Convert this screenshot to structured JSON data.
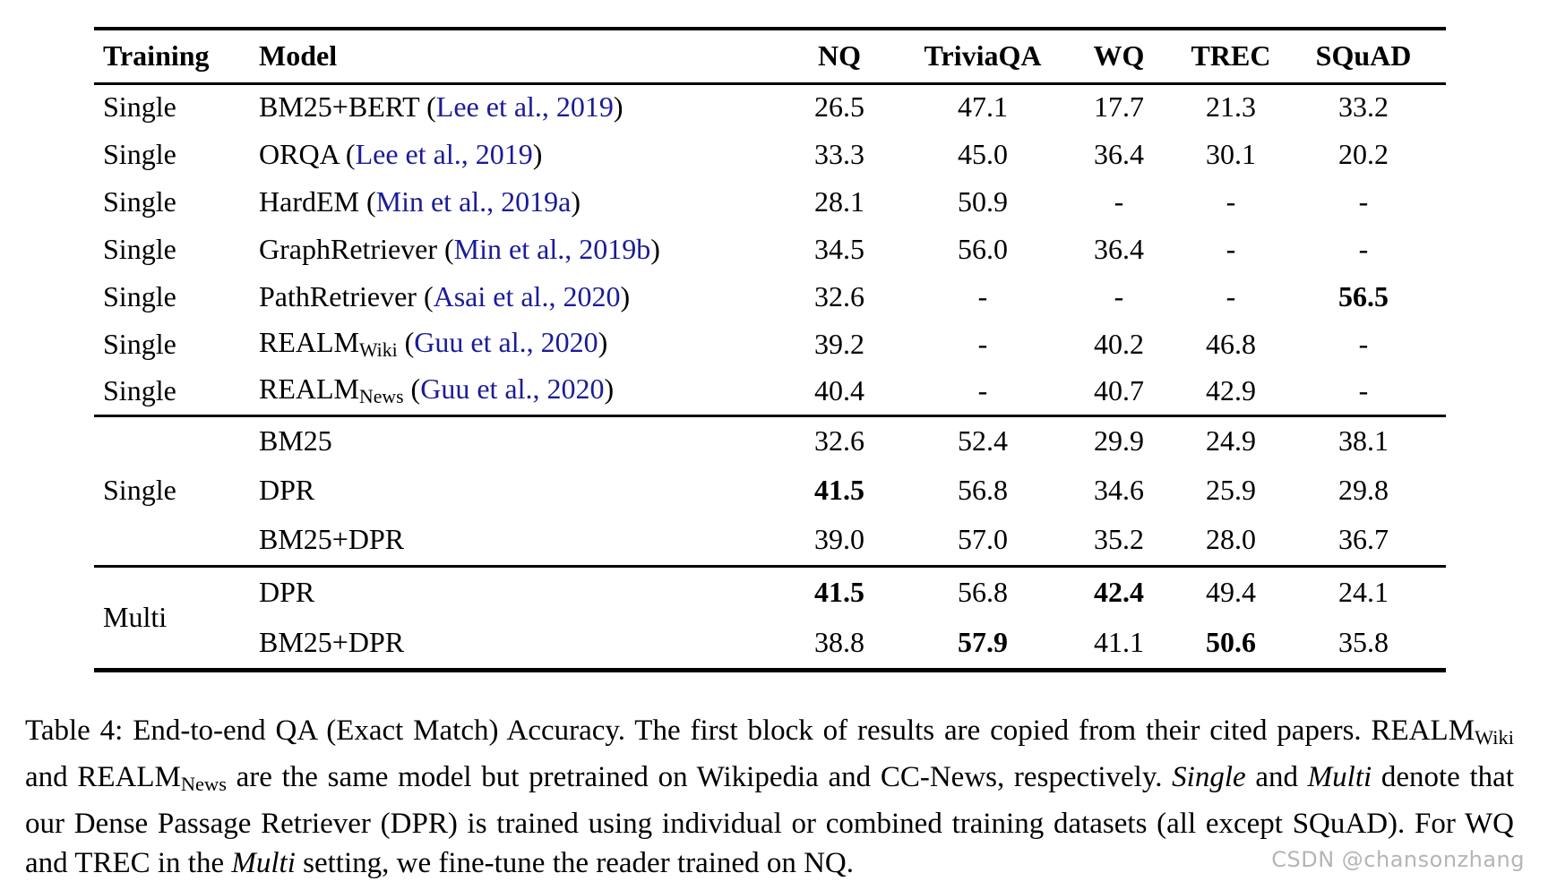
{
  "colors": {
    "citation": "#1b1b99",
    "text": "#000000",
    "rule": "#000000",
    "watermark": "#b5b5b5",
    "background": "#ffffff"
  },
  "table": {
    "headers": [
      "Training",
      "Model",
      "NQ",
      "TriviaQA",
      "WQ",
      "TREC",
      "SQuAD"
    ],
    "blocks": [
      {
        "rows": [
          {
            "training": "Single",
            "model": [
              {
                "t": "BM25+BERT (",
                "s": "n"
              },
              {
                "t": "Lee et al., 2019",
                "s": "c"
              },
              {
                "t": ")",
                "s": "n"
              }
            ],
            "values": [
              "26.5",
              "47.1",
              "17.7",
              "21.3",
              "33.2"
            ],
            "bold": []
          },
          {
            "training": "Single",
            "model": [
              {
                "t": "ORQA (",
                "s": "n"
              },
              {
                "t": "Lee et al., 2019",
                "s": "c"
              },
              {
                "t": ")",
                "s": "n"
              }
            ],
            "values": [
              "33.3",
              "45.0",
              "36.4",
              "30.1",
              "20.2"
            ],
            "bold": []
          },
          {
            "training": "Single",
            "model": [
              {
                "t": "HardEM (",
                "s": "n"
              },
              {
                "t": "Min et al., 2019a",
                "s": "c"
              },
              {
                "t": ")",
                "s": "n"
              }
            ],
            "values": [
              "28.1",
              "50.9",
              "-",
              "-",
              "-"
            ],
            "bold": []
          },
          {
            "training": "Single",
            "model": [
              {
                "t": "GraphRetriever (",
                "s": "n"
              },
              {
                "t": "Min et al., 2019b",
                "s": "c"
              },
              {
                "t": ")",
                "s": "n"
              }
            ],
            "values": [
              "34.5",
              "56.0",
              "36.4",
              "-",
              "-"
            ],
            "bold": []
          },
          {
            "training": "Single",
            "model": [
              {
                "t": "PathRetriever (",
                "s": "n"
              },
              {
                "t": "Asai et al., 2020",
                "s": "c"
              },
              {
                "t": ")",
                "s": "n"
              }
            ],
            "values": [
              "32.6",
              "-",
              "-",
              "-",
              "56.5"
            ],
            "bold": [
              4
            ]
          },
          {
            "training": "Single",
            "model": [
              {
                "t": "REALM",
                "s": "n"
              },
              {
                "t": "Wiki",
                "s": "sub"
              },
              {
                "t": " (",
                "s": "n"
              },
              {
                "t": "Guu et al., 2020",
                "s": "c"
              },
              {
                "t": ")",
                "s": "n"
              }
            ],
            "values": [
              "39.2",
              "-",
              "40.2",
              "46.8",
              "-"
            ],
            "bold": []
          },
          {
            "training": "Single",
            "model": [
              {
                "t": "REALM",
                "s": "n"
              },
              {
                "t": "News",
                "s": "sub"
              },
              {
                "t": " (",
                "s": "n"
              },
              {
                "t": "Guu et al., 2020",
                "s": "c"
              },
              {
                "t": ")",
                "s": "n"
              }
            ],
            "values": [
              "40.4",
              "-",
              "40.7",
              "42.9",
              "-"
            ],
            "bold": []
          }
        ]
      },
      {
        "training_span": "Single",
        "rows": [
          {
            "model": [
              {
                "t": "BM25",
                "s": "n"
              }
            ],
            "values": [
              "32.6",
              "52.4",
              "29.9",
              "24.9",
              "38.1"
            ],
            "bold": []
          },
          {
            "model": [
              {
                "t": "DPR",
                "s": "n"
              }
            ],
            "values": [
              "41.5",
              "56.8",
              "34.6",
              "25.9",
              "29.8"
            ],
            "bold": [
              0
            ]
          },
          {
            "model": [
              {
                "t": "BM25+DPR",
                "s": "n"
              }
            ],
            "values": [
              "39.0",
              "57.0",
              "35.2",
              "28.0",
              "36.7"
            ],
            "bold": []
          }
        ]
      },
      {
        "training_span": "Multi",
        "rows": [
          {
            "model": [
              {
                "t": "DPR",
                "s": "n"
              }
            ],
            "values": [
              "41.5",
              "56.8",
              "42.4",
              "49.4",
              "24.1"
            ],
            "bold": [
              0,
              2
            ]
          },
          {
            "model": [
              {
                "t": "BM25+DPR",
                "s": "n"
              }
            ],
            "values": [
              "38.8",
              "57.9",
              "41.1",
              "50.6",
              "35.8"
            ],
            "bold": [
              1,
              3
            ]
          }
        ]
      }
    ]
  },
  "caption": {
    "segments": [
      {
        "t": "Table 4: End-to-end QA (Exact Match) Accuracy. The first block of results are copied from their cited papers. REALM",
        "s": "n"
      },
      {
        "t": "Wiki",
        "s": "sub"
      },
      {
        "t": " and REALM",
        "s": "n"
      },
      {
        "t": "News",
        "s": "sub"
      },
      {
        "t": " are the same model but pretrained on Wikipedia and CC-News, respectively. ",
        "s": "n"
      },
      {
        "t": "Single",
        "s": "i"
      },
      {
        "t": " and ",
        "s": "n"
      },
      {
        "t": "Multi",
        "s": "i"
      },
      {
        "t": " denote that our Dense Passage Retriever (DPR) is trained using individual or combined training datasets (all except SQuAD). For WQ and TREC in the ",
        "s": "n"
      },
      {
        "t": "Multi",
        "s": "i"
      },
      {
        "t": " setting, we fine-tune the reader trained on NQ.",
        "s": "n"
      }
    ]
  },
  "watermark": {
    "text": "CSDN @chansonzhang"
  }
}
